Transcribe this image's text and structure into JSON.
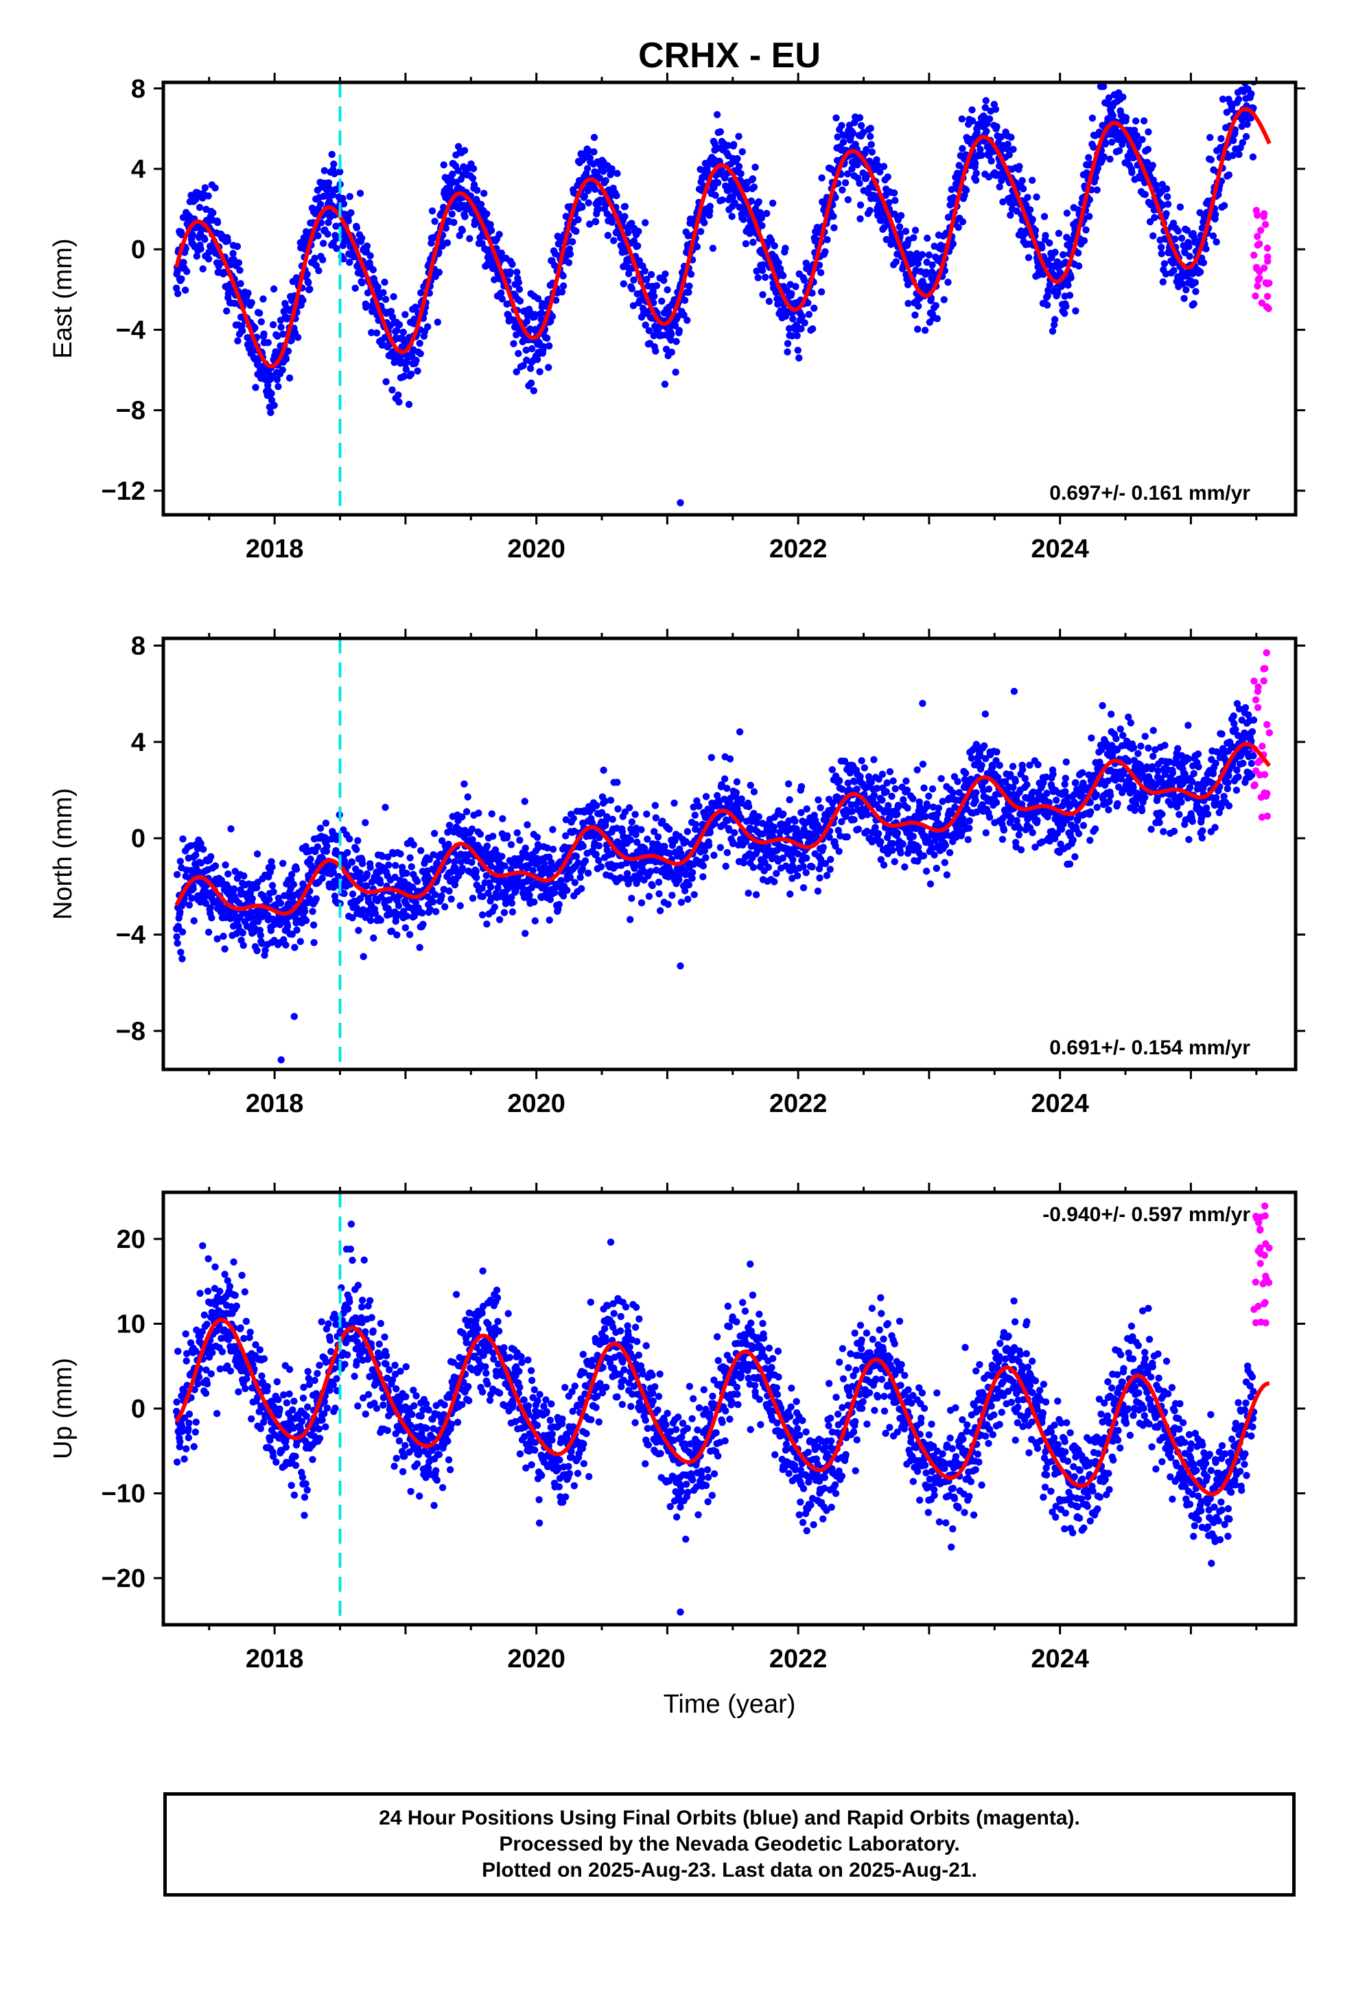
{
  "title": "CRHX - EU",
  "colors": {
    "final_orbits": "#0000ff",
    "rapid_orbits": "#ff00ff",
    "model": "#ff0000",
    "event_line": "#00e5e5",
    "axes": "#000000"
  },
  "chart_data": [
    {
      "type": "scatter",
      "name": "east",
      "ylabel": "East (mm)",
      "xlabel": "",
      "xlim": [
        2017.15,
        2025.8
      ],
      "ylim": [
        -13.2,
        8.3
      ],
      "xticks": [
        2018,
        2020,
        2022,
        2024
      ],
      "yticks": [
        8,
        4,
        0,
        -4,
        -8,
        -12
      ],
      "rate_text": "0.697+/- 0.161 mm/yr",
      "rate_position": "bottom-right",
      "event_line_x": 2018.5,
      "model": {
        "start": 2017.25,
        "end": 2025.6,
        "offset": -2.4,
        "rate": 0.7,
        "annual_amp": 3.7,
        "annual_peak": 2017.45,
        "semiannual_amp": 0.45,
        "semiannual_peak": 2017.3
      },
      "scatter_sigma": 1.0,
      "outliers": [
        {
          "x": 2021.1,
          "y": -12.6
        }
      ],
      "rapid_x_range": [
        2025.48,
        2025.6
      ],
      "rapid_y_range": [
        -3.6,
        2.4
      ]
    },
    {
      "type": "scatter",
      "name": "north",
      "ylabel": "North (mm)",
      "xlabel": "",
      "xlim": [
        2017.15,
        2025.8
      ],
      "ylim": [
        -9.6,
        8.3
      ],
      "xticks": [
        2018,
        2020,
        2022,
        2024
      ],
      "yticks": [
        8,
        4,
        0,
        -4,
        -8
      ],
      "rate_text": "0.691+/- 0.154 mm/yr",
      "rate_position": "bottom-right",
      "event_line_x": 2018.5,
      "model": {
        "start": 2017.25,
        "end": 2025.6,
        "offset": -2.9,
        "rate": 0.69,
        "annual_amp": 0.8,
        "annual_peak": 2017.45,
        "semiannual_amp": 0.4,
        "semiannual_peak": 2017.4
      },
      "scatter_sigma": 0.9,
      "outliers": [
        {
          "x": 2018.05,
          "y": -9.2
        },
        {
          "x": 2018.15,
          "y": -7.4
        },
        {
          "x": 2021.1,
          "y": -5.3
        },
        {
          "x": 2022.95,
          "y": 5.6
        },
        {
          "x": 2023.65,
          "y": 6.1
        }
      ],
      "rapid_x_range": [
        2025.48,
        2025.6
      ],
      "rapid_y_range": [
        0.8,
        8.0
      ]
    },
    {
      "type": "scatter",
      "name": "up",
      "ylabel": "Up (mm)",
      "xlabel": "Time (year)",
      "xlim": [
        2017.15,
        2025.8
      ],
      "ylim": [
        -25.5,
        25.5
      ],
      "xticks": [
        2018,
        2020,
        2022,
        2024
      ],
      "yticks": [
        20,
        10,
        0,
        -10,
        -20
      ],
      "rate_text": "-0.940+/- 0.597 mm/yr",
      "rate_position": "top-right",
      "event_line_x": 2018.5,
      "model": {
        "start": 2017.25,
        "end": 2025.6,
        "offset": 3.6,
        "rate": -0.94,
        "annual_amp": 6.6,
        "annual_peak": 2017.62,
        "semiannual_amp": 0.8,
        "semiannual_peak": 2017.55
      },
      "scatter_sigma": 3.2,
      "outliers": [
        {
          "x": 2021.1,
          "y": -24.0
        },
        {
          "x": 2017.45,
          "y": 19.2
        },
        {
          "x": 2018.55,
          "y": 18.8
        }
      ],
      "rapid_x_range": [
        2025.48,
        2025.6
      ],
      "rapid_y_range": [
        10.0,
        24.5
      ]
    }
  ],
  "footer": {
    "line1": "24 Hour Positions Using Final Orbits (blue) and Rapid Orbits (magenta).",
    "line2": "Processed by the Nevada Geodetic Laboratory.",
    "line3": "Plotted on 2025-Aug-23. Last data on 2025-Aug-21."
  }
}
